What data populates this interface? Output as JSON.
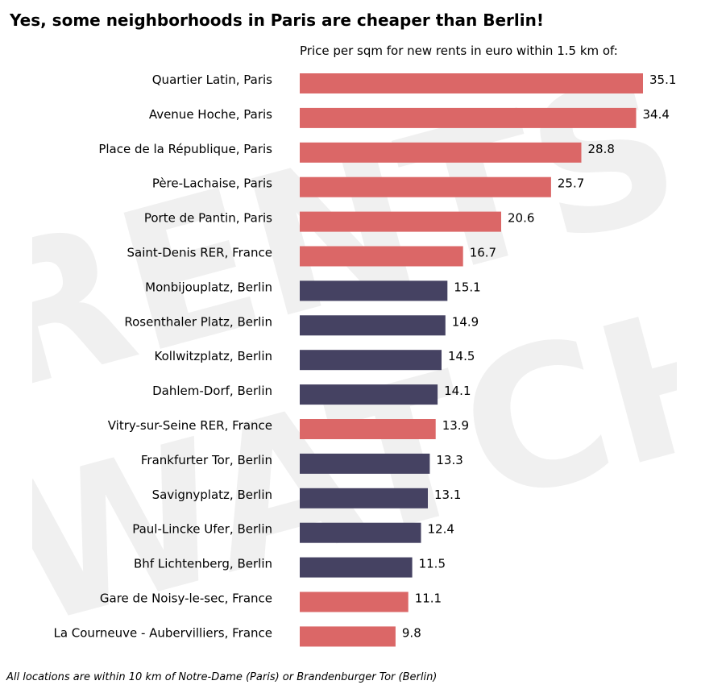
{
  "title": "Yes, some neighborhoods in Paris are cheaper than Berlin!",
  "subtitle": "Price per sqm for new rents in euro within 1.5 km of:",
  "footnote": "All locations are within 10 km of Notre-Dame (Paris) or Brandenburger Tor (Berlin)",
  "watermark": [
    "RENTS",
    "WATCH"
  ],
  "colors": {
    "france": "#d95f5f",
    "berlin": "#3b385a",
    "watermark": "#efefef"
  },
  "chart_data": {
    "type": "bar",
    "orientation": "horizontal",
    "title": "Yes, some neighborhoods in Paris are cheaper than Berlin!",
    "subtitle": "Price per sqm for new rents in euro within 1.5 km of:",
    "categories": [
      "Quartier Latin, Paris",
      "Avenue Hoche, Paris",
      "Place de la République, Paris",
      "Père-Lachaise, Paris",
      "Porte de Pantin, Paris",
      "Saint-Denis RER, France",
      "Monbijouplatz, Berlin",
      "Rosenthaler Platz, Berlin",
      "Kollwitzplatz, Berlin",
      "Dahlem-Dorf, Berlin",
      "Vitry-sur-Seine RER, France",
      "Frankfurter Tor, Berlin",
      "Savignyplatz, Berlin",
      "Paul-Lincke Ufer, Berlin",
      "Bhf Lichtenberg, Berlin",
      "Gare de Noisy-le-sec, France",
      "La Courneuve - Aubervilliers, France"
    ],
    "values": [
      35.1,
      34.4,
      28.8,
      25.7,
      20.6,
      16.7,
      15.1,
      14.9,
      14.5,
      14.1,
      13.9,
      13.3,
      13.1,
      12.4,
      11.5,
      11.1,
      9.8
    ],
    "value_labels": [
      "35.1",
      "34.4",
      "28.8",
      "25.7",
      "20.6",
      "16.7",
      "15.1",
      "14.9",
      "14.5",
      "14.1",
      "13.9",
      "13.3",
      "13.1",
      "12.4",
      "11.5",
      "11.1",
      "9.8"
    ],
    "groups": [
      "france",
      "france",
      "france",
      "france",
      "france",
      "france",
      "berlin",
      "berlin",
      "berlin",
      "berlin",
      "france",
      "berlin",
      "berlin",
      "berlin",
      "berlin",
      "france",
      "france"
    ],
    "xlim": [
      0,
      35.1
    ],
    "grid": false,
    "legend": "none"
  }
}
